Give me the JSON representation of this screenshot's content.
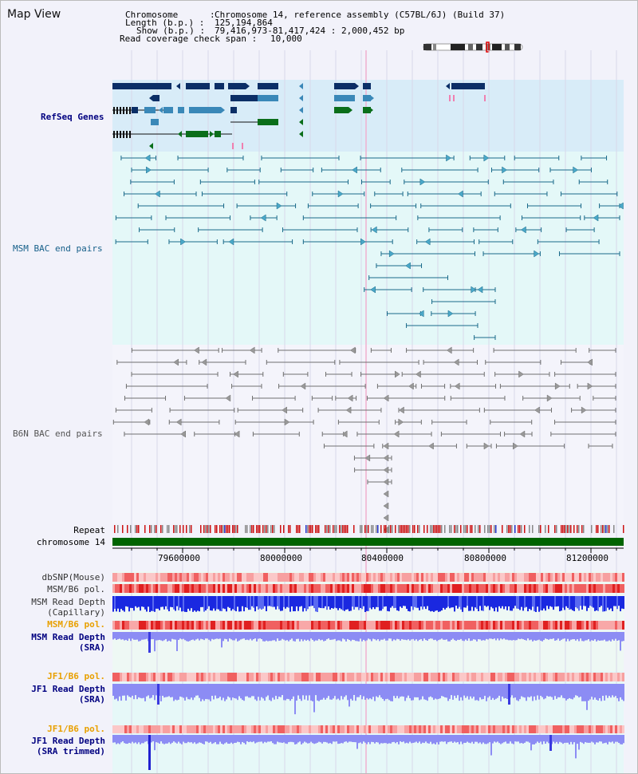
{
  "header": {
    "title": "Map View",
    "chromosome_label": "Chromosome      :",
    "chromosome_value": "Chromosome 14, reference assembly (C57BL/6J) (Build 37)",
    "length_label": "Length (b.p.) :",
    "length_value": "125,194,864",
    "show_label": "Show (b.p.) :",
    "show_value": "79,416,973-81,417,424 : 2,000,452 bp",
    "coverage_label": "Read coverage check span :",
    "coverage_value": "10,000"
  },
  "tracks": {
    "refseq": "RefSeq Genes",
    "msm_bac": "MSM BAC end pairs",
    "b6n_bac": "B6N BAC end pairs",
    "repeat": "Repeat",
    "chromosome": "chromosome 14",
    "dbsnp": "dbSNP(Mouse)",
    "msm_b6_pol_1": "MSM/B6 pol.",
    "msm_read_depth_cap_1": "MSM Read Depth",
    "msm_read_depth_cap_2": "(Capillary)",
    "msm_b6_pol_2": "MSM/B6 pol.",
    "msm_read_depth_sra_1": "MSM Read Depth",
    "msm_read_depth_sra_2": "(SRA)",
    "jf1_b6_pol_1": "JF1/B6 pol.",
    "jf1_read_depth_sra_1": "JF1 Read Depth",
    "jf1_read_depth_sra_2": "(SRA)",
    "jf1_b6_pol_2": "JF1/B6 pol.",
    "jf1_read_depth_trim_1": "JF1 Read Depth",
    "jf1_read_depth_trim_2": "(SRA trimmed)"
  },
  "axis": {
    "ticks": [
      "79600000",
      "80000000",
      "80400000",
      "80800000",
      "81200000"
    ]
  },
  "colors": {
    "refseq_bg": "#d8ecf8",
    "msm_bg": "#e4f8f8",
    "gene_dark": "#0b2e66",
    "gene_mid": "#3a88b8",
    "gene_green": "#0a6e1a",
    "msm_line": "#1a6a8a",
    "b6n_line": "#707070",
    "chrom_green": "#006400",
    "depth_blue": "#1a28e0",
    "depth_light": "#8c8cf4"
  }
}
